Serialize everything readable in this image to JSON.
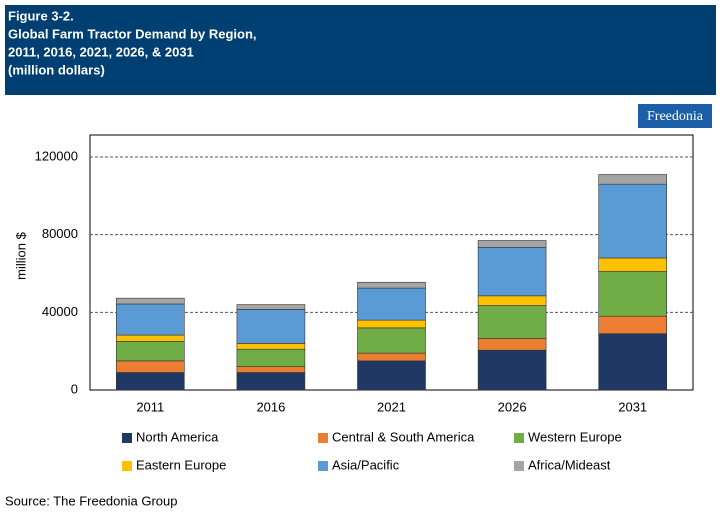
{
  "chart_data": {
    "type": "stacked-bar",
    "title": [
      "Figure 3-2.",
      "Global Farm Tractor Demand by Region,",
      "2011, 2016, 2021, 2026, & 2031",
      "(million dollars)"
    ],
    "logo": "Freedonia",
    "y_label": "million $",
    "source": "Source: The Freedonia Group",
    "categories": [
      "2011",
      "2016",
      "2021",
      "2026",
      "2031"
    ],
    "series": [
      {
        "name": "North America",
        "color": "#1f3864",
        "values": [
          9000,
          9000,
          15000,
          20500,
          29000
        ]
      },
      {
        "name": "Central & South America",
        "color": "#ed7d31",
        "values": [
          6000,
          3000,
          4000,
          6000,
          9000
        ]
      },
      {
        "name": "Western Europe",
        "color": "#70ad47",
        "values": [
          10000,
          9000,
          13000,
          17000,
          23000
        ]
      },
      {
        "name": "Eastern Europe",
        "color": "#ffc000",
        "values": [
          3300,
          3000,
          4000,
          5000,
          7000
        ]
      },
      {
        "name": "Asia/Pacific",
        "color": "#5b9bd5",
        "values": [
          16000,
          17500,
          16500,
          25000,
          38000
        ]
      },
      {
        "name": "Africa/Mideast",
        "color": "#a5a5a5",
        "values": [
          3000,
          2500,
          3000,
          3500,
          5000
        ]
      }
    ],
    "ylim": [
      0,
      120000
    ],
    "yticks": [
      0,
      40000,
      80000,
      120000
    ],
    "grid": true
  }
}
